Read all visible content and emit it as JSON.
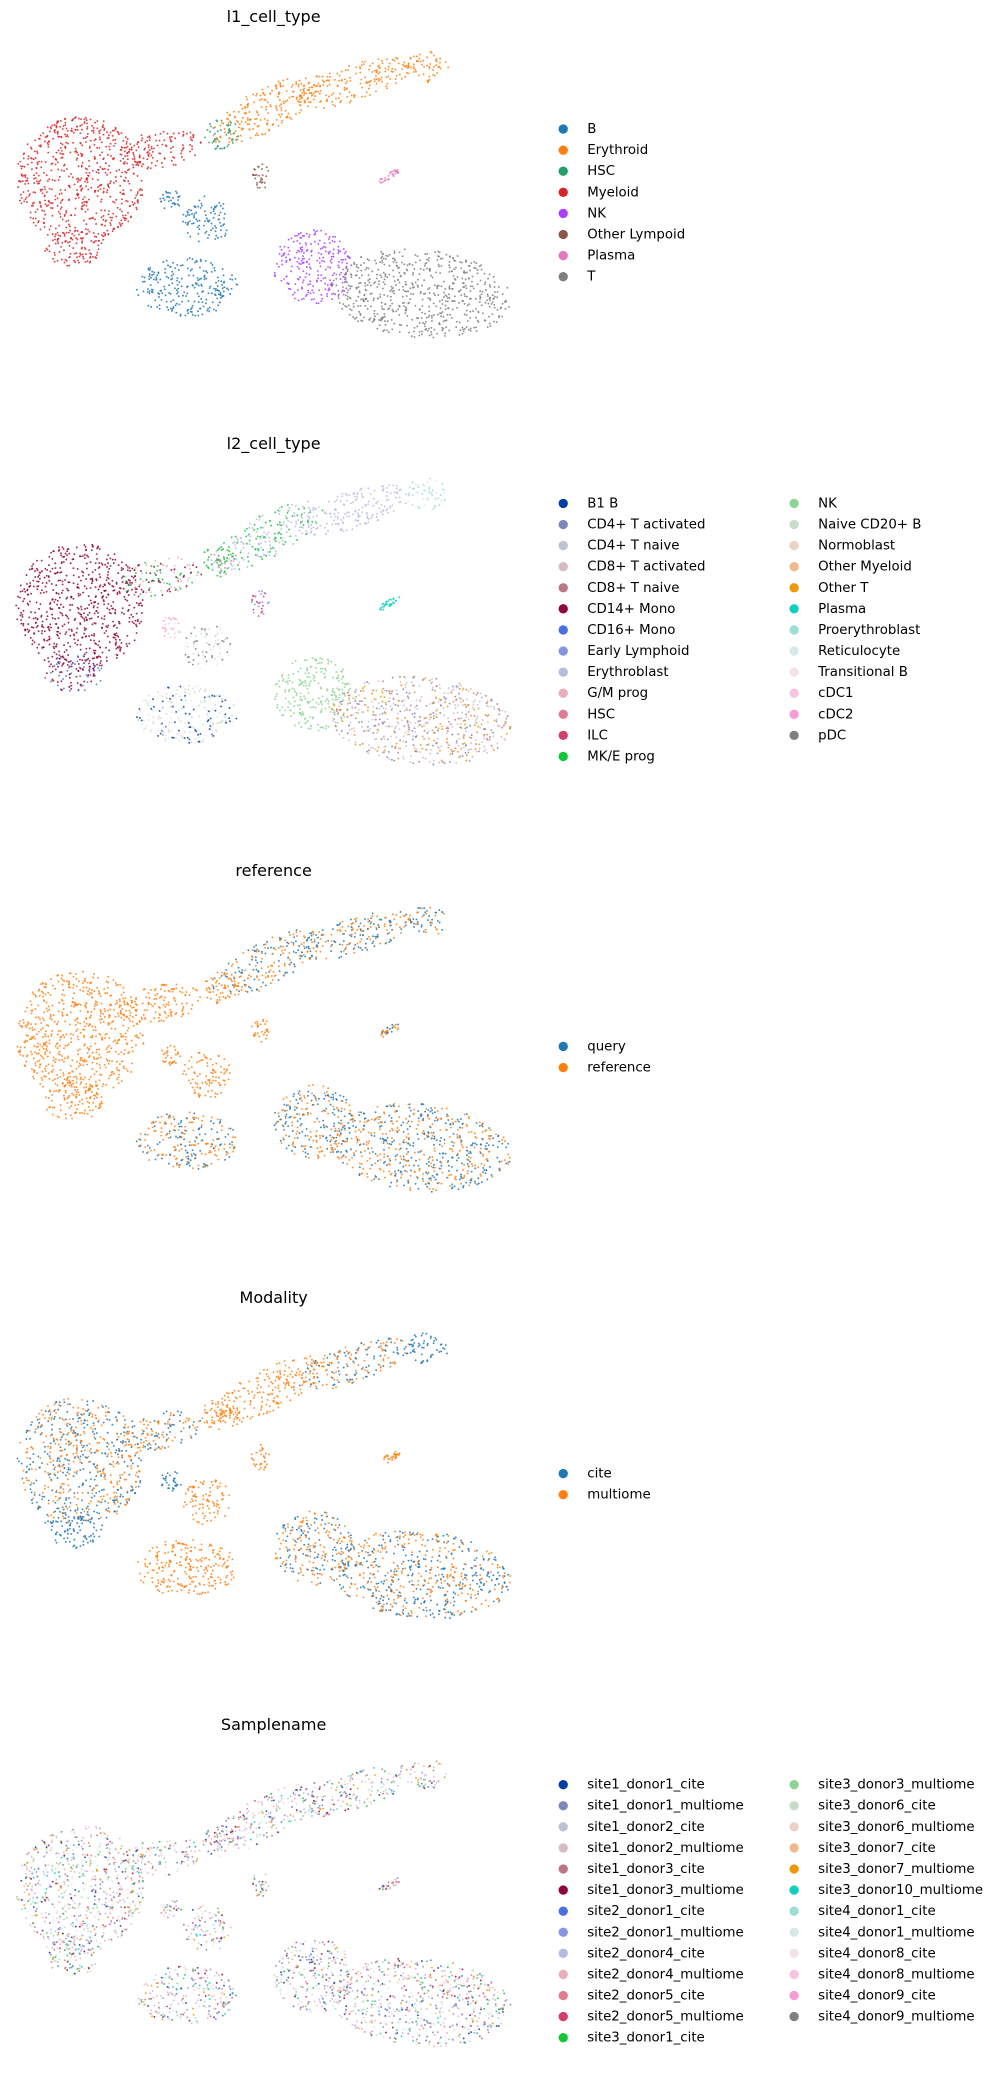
{
  "chart_data": [
    {
      "type": "umap",
      "title": "l1_cell_type",
      "series": [
        {
          "name": "B",
          "color": "#1f77b4"
        },
        {
          "name": "Erythroid",
          "color": "#ff7f0e"
        },
        {
          "name": "HSC",
          "color": "#279e68"
        },
        {
          "name": "Myeloid",
          "color": "#d62728"
        },
        {
          "name": "NK",
          "color": "#aa40fc"
        },
        {
          "name": "Other Lympoid",
          "color": "#8c564b"
        },
        {
          "name": "Plasma",
          "color": "#e377c2"
        },
        {
          "name": "T",
          "color": "#7f7f7f"
        }
      ]
    },
    {
      "type": "umap",
      "title": "l2_cell_type",
      "series": [
        {
          "name": "B1 B",
          "color": "#023fa5"
        },
        {
          "name": "CD4+ T activated",
          "color": "#7d87b9"
        },
        {
          "name": "CD4+ T naive",
          "color": "#bec1d4"
        },
        {
          "name": "CD8+ T activated",
          "color": "#d6bcc0"
        },
        {
          "name": "CD8+ T naive",
          "color": "#bb7784"
        },
        {
          "name": "CD14+ Mono",
          "color": "#8e063b"
        },
        {
          "name": "CD16+ Mono",
          "color": "#4a6fe3"
        },
        {
          "name": "Early Lymphoid",
          "color": "#8595e1"
        },
        {
          "name": "Erythroblast",
          "color": "#b5bbe3"
        },
        {
          "name": "G/M prog",
          "color": "#e6afb9"
        },
        {
          "name": "HSC",
          "color": "#e07b91"
        },
        {
          "name": "ILC",
          "color": "#d33f6a"
        },
        {
          "name": "MK/E prog",
          "color": "#11c638"
        },
        {
          "name": "NK",
          "color": "#8dd593"
        },
        {
          "name": "Naive CD20+ B",
          "color": "#c6dec7"
        },
        {
          "name": "Normoblast",
          "color": "#ead3c6"
        },
        {
          "name": "Other Myeloid",
          "color": "#f0b98d"
        },
        {
          "name": "Other T",
          "color": "#ef9708"
        },
        {
          "name": "Plasma",
          "color": "#0fcfc0"
        },
        {
          "name": "Proerythroblast",
          "color": "#9cded6"
        },
        {
          "name": "Reticulocyte",
          "color": "#d5eae7"
        },
        {
          "name": "Transitional B",
          "color": "#f3e1eb"
        },
        {
          "name": "cDC1",
          "color": "#f6c4e1"
        },
        {
          "name": "cDC2",
          "color": "#f79cd4"
        },
        {
          "name": "pDC",
          "color": "#7f7f7f"
        }
      ]
    },
    {
      "type": "umap",
      "title": "reference",
      "series": [
        {
          "name": "query",
          "color": "#1f77b4"
        },
        {
          "name": "reference",
          "color": "#ff7f0e"
        }
      ]
    },
    {
      "type": "umap",
      "title": "Modality",
      "series": [
        {
          "name": "cite",
          "color": "#1f77b4"
        },
        {
          "name": "multiome",
          "color": "#ff7f0e"
        }
      ]
    },
    {
      "type": "umap",
      "title": "Samplename",
      "series": [
        {
          "name": "site1_donor1_cite",
          "color": "#023fa5"
        },
        {
          "name": "site1_donor1_multiome",
          "color": "#7d87b9"
        },
        {
          "name": "site1_donor2_cite",
          "color": "#bec1d4"
        },
        {
          "name": "site1_donor2_multiome",
          "color": "#d6bcc0"
        },
        {
          "name": "site1_donor3_cite",
          "color": "#bb7784"
        },
        {
          "name": "site1_donor3_multiome",
          "color": "#8e063b"
        },
        {
          "name": "site2_donor1_cite",
          "color": "#4a6fe3"
        },
        {
          "name": "site2_donor1_multiome",
          "color": "#8595e1"
        },
        {
          "name": "site2_donor4_cite",
          "color": "#b5bbe3"
        },
        {
          "name": "site2_donor4_multiome",
          "color": "#e6afb9"
        },
        {
          "name": "site2_donor5_cite",
          "color": "#e07b91"
        },
        {
          "name": "site2_donor5_multiome",
          "color": "#d33f6a"
        },
        {
          "name": "site3_donor1_cite",
          "color": "#11c638"
        },
        {
          "name": "site3_donor3_multiome",
          "color": "#8dd593"
        },
        {
          "name": "site3_donor6_cite",
          "color": "#c6dec7"
        },
        {
          "name": "site3_donor6_multiome",
          "color": "#ead3c6"
        },
        {
          "name": "site3_donor7_cite",
          "color": "#f0b98d"
        },
        {
          "name": "site3_donor7_multiome",
          "color": "#ef9708"
        },
        {
          "name": "site3_donor10_multiome",
          "color": "#0fcfc0"
        },
        {
          "name": "site4_donor1_cite",
          "color": "#9cded6"
        },
        {
          "name": "site4_donor1_multiome",
          "color": "#d5eae7"
        },
        {
          "name": "site4_donor8_cite",
          "color": "#f3e1eb"
        },
        {
          "name": "site4_donor8_multiome",
          "color": "#f6c4e1"
        },
        {
          "name": "site4_donor9_cite",
          "color": "#f79cd4"
        },
        {
          "name": "site4_donor9_multiome",
          "color": "#7f7f7f"
        }
      ]
    }
  ]
}
